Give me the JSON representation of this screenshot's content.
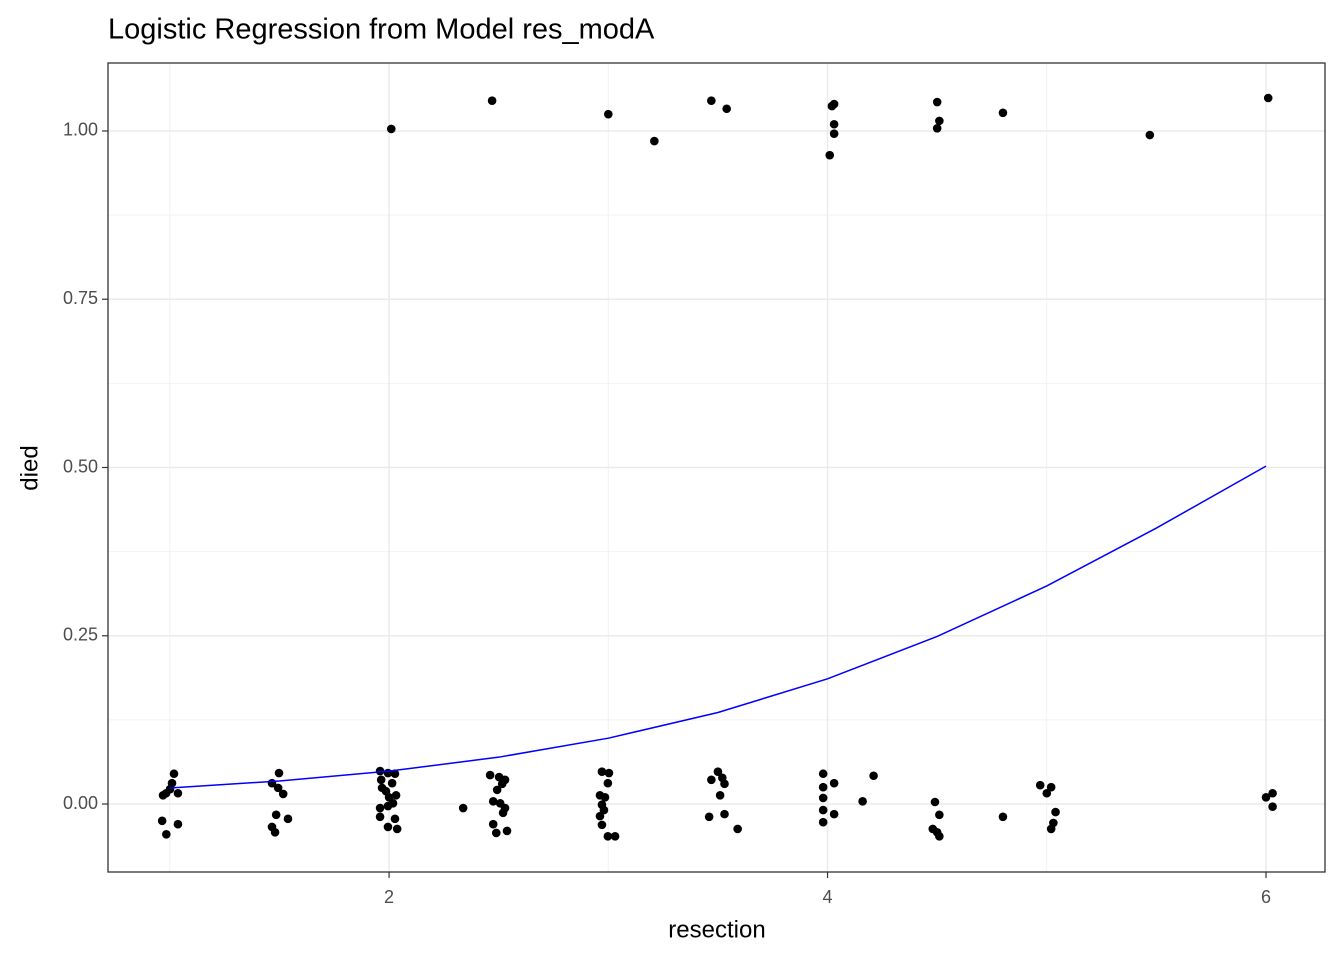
{
  "chart_data": {
    "type": "scatter",
    "title": "Logistic Regression from Model res_modA",
    "x_label": "resection",
    "y_label": "died",
    "xlim": [
      0.718,
      6.269
    ],
    "ylim": [
      -0.101,
      1.101
    ],
    "xticks": [
      2,
      4,
      6
    ],
    "yticks": [
      {
        "value": 0,
        "label": "0.00"
      },
      {
        "value": 0.25,
        "label": "0.25"
      },
      {
        "value": 0.5,
        "label": "0.50"
      },
      {
        "value": 0.75,
        "label": "0.75"
      },
      {
        "value": 1,
        "label": "1.00"
      }
    ],
    "minor_xticks": [
      1,
      3,
      5
    ],
    "minor_yticks": [
      0.125,
      0.375,
      0.625,
      0.875
    ],
    "grid": true,
    "point_color": "#000000",
    "x": [
      2.01,
      2.47,
      3.0,
      3.21,
      3.47,
      3.54,
      4.02,
      4.03,
      4.03,
      4.03,
      4.01,
      4.5,
      4.51,
      4.5,
      4.8,
      5.47,
      6.01,
      1.019,
      1.01,
      1.001,
      0.983,
      1.037,
      0.969,
      0.965,
      1.037,
      0.984,
      1.498,
      1.466,
      1.494,
      1.517,
      1.485,
      1.539,
      1.466,
      1.48,
      1.959,
      1.995,
      2.027,
      1.964,
      2.014,
      1.968,
      1.986,
      2.032,
      2.0,
      1.959,
      1.995,
      2.018,
      1.959,
      2.027,
      1.995,
      2.037,
      2.338,
      2.461,
      2.502,
      2.529,
      2.516,
      2.493,
      2.475,
      2.507,
      2.529,
      2.52,
      2.475,
      2.538,
      2.489,
      2.971,
      3.003,
      2.998,
      2.962,
      2.985,
      2.971,
      2.98,
      2.962,
      2.971,
      2.998,
      3.031,
      3.5,
      3.52,
      3.47,
      3.53,
      3.51,
      3.53,
      3.46,
      3.59,
      3.98,
      4.03,
      3.98,
      3.98,
      4.03,
      3.98,
      3.98,
      4.16,
      4.21,
      4.49,
      4.51,
      4.48,
      4.5,
      4.51,
      4.8,
      4.97,
      5.02,
      5.0,
      5.04,
      5.03,
      5.02,
      6.03,
      6.0,
      6.03
    ],
    "values": [
      1.003,
      1.045,
      1.025,
      0.985,
      1.045,
      1.033,
      1.037,
      1.04,
      1.01,
      0.996,
      0.964,
      1.043,
      1.015,
      1.004,
      1.027,
      0.994,
      1.049,
      0.045,
      0.031,
      0.022,
      0.016,
      0.016,
      0.013,
      -0.025,
      -0.03,
      -0.045,
      0.046,
      0.031,
      0.024,
      0.015,
      -0.016,
      -0.022,
      -0.034,
      -0.042,
      0.049,
      0.046,
      0.045,
      0.036,
      0.031,
      0.024,
      0.019,
      0.013,
      0.01,
      -0.006,
      -0.003,
      0.001,
      -0.019,
      -0.022,
      -0.034,
      -0.037,
      -0.006,
      0.043,
      0.04,
      0.036,
      0.03,
      0.021,
      0.004,
      0.001,
      -0.006,
      -0.013,
      -0.03,
      -0.04,
      -0.043,
      0.048,
      0.046,
      0.031,
      0.013,
      0.01,
      -0.001,
      -0.009,
      -0.018,
      -0.031,
      -0.048,
      -0.048,
      0.048,
      0.039,
      0.036,
      0.03,
      0.013,
      -0.015,
      -0.019,
      -0.037,
      0.045,
      0.031,
      0.025,
      0.009,
      -0.015,
      -0.009,
      -0.027,
      0.004,
      0.042,
      0.003,
      -0.016,
      -0.037,
      -0.042,
      -0.048,
      -0.019,
      0.028,
      0.025,
      0.016,
      -0.012,
      -0.028,
      -0.037,
      0.016,
      0.01,
      -0.004
    ],
    "curve": {
      "color": "#0000ff",
      "x": [
        1,
        1.5,
        2,
        2.5,
        3,
        3.5,
        4,
        4.5,
        5,
        5.5,
        6
      ],
      "values": [
        0.0239,
        0.0343,
        0.0489,
        0.0696,
        0.0978,
        0.136,
        0.186,
        0.249,
        0.324,
        0.41,
        0.502
      ]
    }
  }
}
